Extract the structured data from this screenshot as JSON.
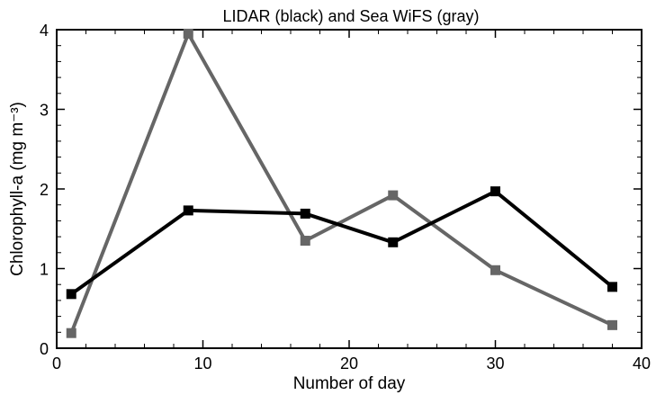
{
  "chart_data": {
    "type": "line",
    "title": "LIDAR (black) and Sea WiFS (gray)",
    "xlabel": "Number of day",
    "ylabel": "Chlorophyll-a (mg m⁻³)",
    "xlim": [
      0,
      40
    ],
    "ylim": [
      0,
      4
    ],
    "xticks": [
      0,
      10,
      20,
      30,
      40
    ],
    "yticks": [
      0,
      1,
      2,
      3,
      4
    ],
    "grid": false,
    "series": [
      {
        "color": "#000000",
        "x": [
          1,
          9,
          17,
          23,
          30,
          38
        ],
        "y": [
          0.68,
          1.73,
          1.69,
          1.33,
          1.97,
          0.77
        ]
      },
      {
        "color": "#666666",
        "x": [
          1,
          9,
          17,
          23,
          30,
          38
        ],
        "y": [
          0.19,
          3.95,
          1.35,
          1.92,
          0.98,
          0.29
        ]
      }
    ]
  }
}
